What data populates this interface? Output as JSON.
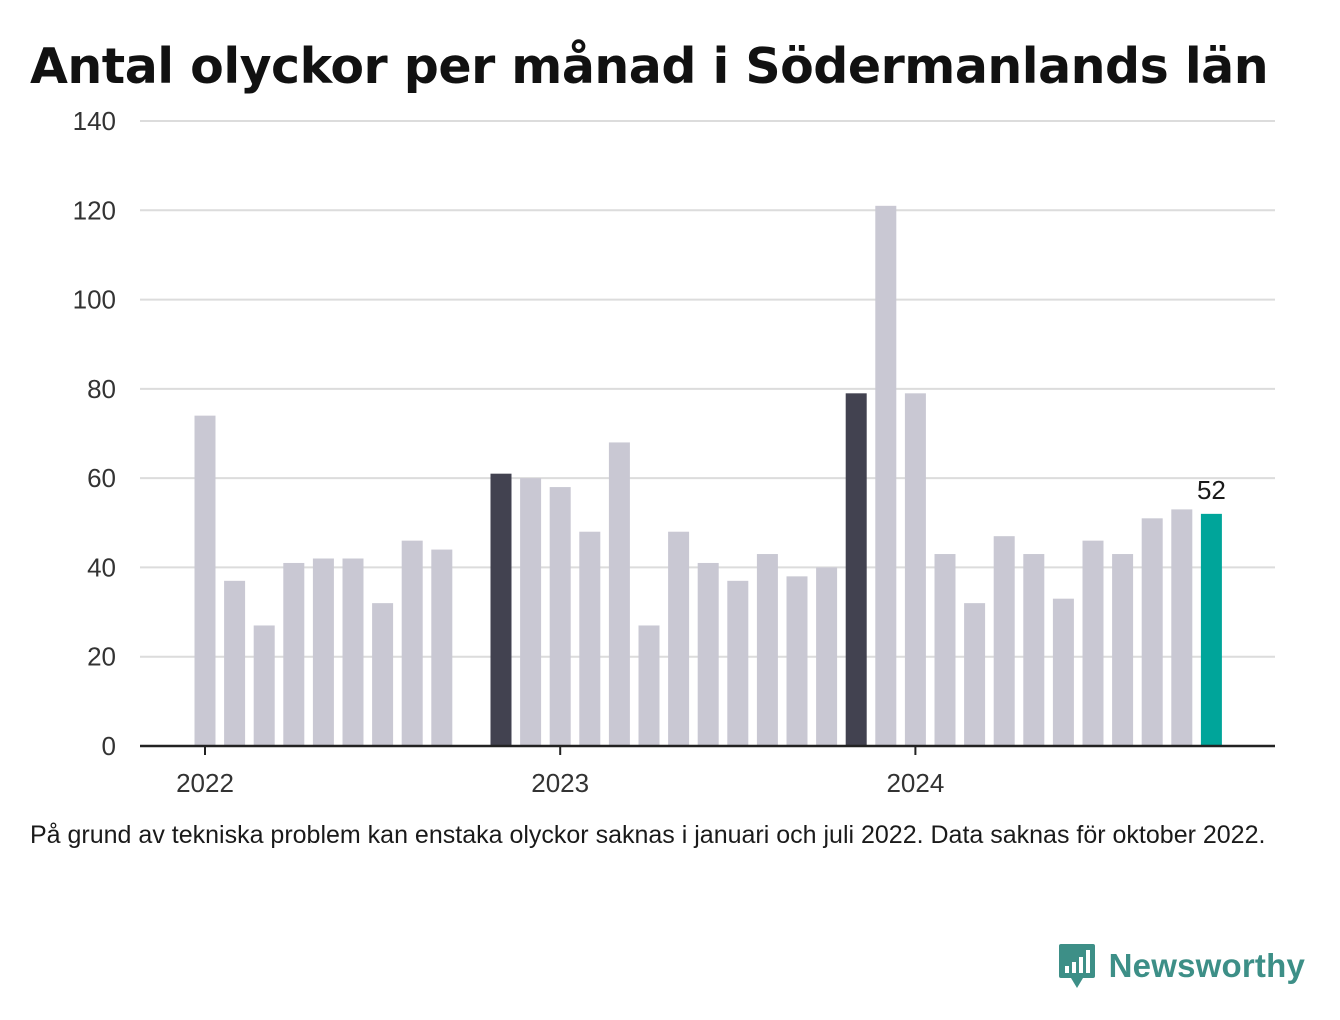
{
  "chart_data": {
    "type": "bar",
    "title": "Antal olyckor per månad i Södermanlands län",
    "ylim": [
      0,
      140
    ],
    "yticks": [
      "0",
      "20",
      "40",
      "60",
      "80",
      "100",
      "120",
      "140"
    ],
    "x_tick_labels": [
      {
        "label": "2022",
        "at_index": 0
      },
      {
        "label": "2023",
        "at_index": 12
      },
      {
        "label": "2024",
        "at_index": 24
      }
    ],
    "categories": [
      "2022-01",
      "2022-02",
      "2022-03",
      "2022-04",
      "2022-05",
      "2022-06",
      "2022-07",
      "2022-08",
      "2022-09",
      "2022-10",
      "2022-11",
      "2022-12",
      "2023-01",
      "2023-02",
      "2023-03",
      "2023-04",
      "2023-05",
      "2023-06",
      "2023-07",
      "2023-08",
      "2023-09",
      "2023-10",
      "2023-11",
      "2023-12",
      "2024-01",
      "2024-02",
      "2024-03",
      "2024-04",
      "2024-05",
      "2024-06",
      "2024-07",
      "2024-08",
      "2024-09",
      "2024-10",
      "2024-11",
      "2024-12",
      "2025-01"
    ],
    "values": [
      74,
      37,
      27,
      41,
      42,
      42,
      32,
      46,
      44,
      null,
      61,
      60,
      58,
      48,
      68,
      27,
      48,
      41,
      37,
      43,
      38,
      40,
      79,
      121,
      79,
      43,
      32,
      47,
      43,
      33,
      46,
      43,
      51,
      53,
      52,
      null,
      null
    ],
    "highlight": {
      "dark": [
        10,
        22
      ],
      "accent": [
        34
      ]
    },
    "last_value_label": "52",
    "grid": true,
    "colors": {
      "bar": "#c9c8d3",
      "dark": "#424250",
      "accent": "#00a59a",
      "grid": "#dcdcdc",
      "axis": "#222222"
    }
  },
  "footnote": "På grund av tekniska problem kan enstaka olyckor saknas i januari och juli 2022. Data saknas för oktober 2022.",
  "brand": {
    "name": "Newsworthy",
    "icon": "bar-chart-speech-bubble-icon",
    "color": "#3d8f87"
  }
}
